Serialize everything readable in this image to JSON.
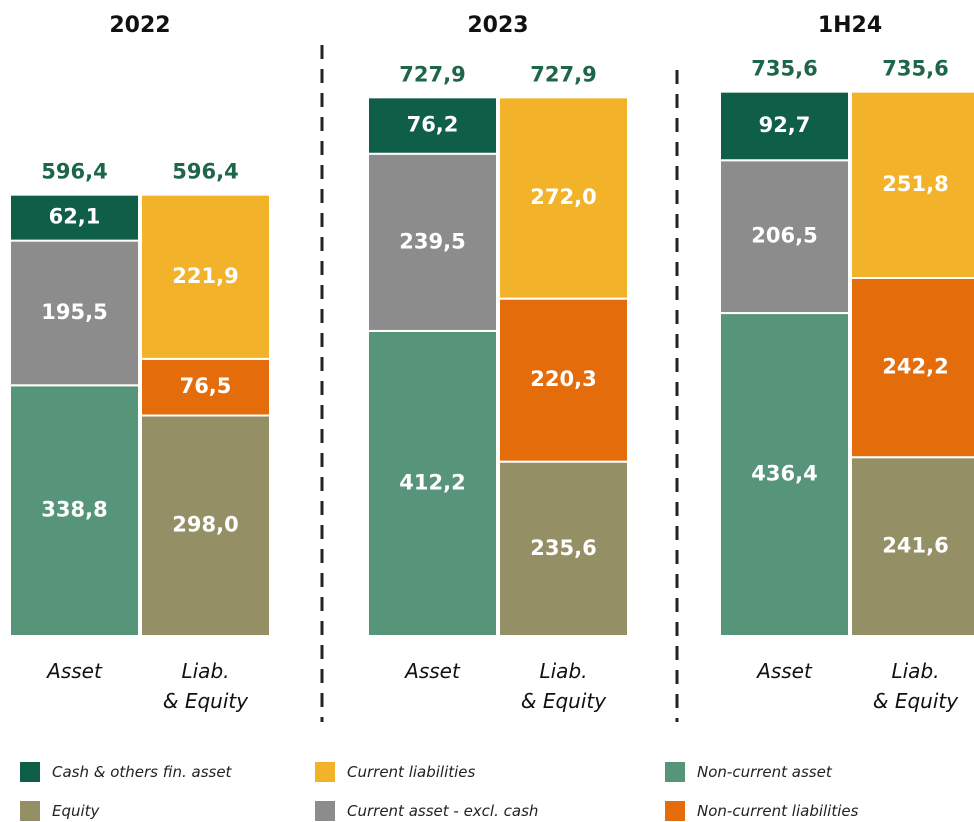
{
  "chart_data": {
    "type": "stacked_bar",
    "groups": [
      "2022",
      "2023",
      "1H24"
    ],
    "categories": [
      "Asset",
      "Liab.\n& Equity",
      "Asset",
      "Liab.\n& Equity",
      "Asset",
      "Liab.\n& Equity"
    ],
    "series": [
      {
        "name": "Non-current asset",
        "color": "#56957a",
        "values": [
          338.8,
          null,
          412.2,
          null,
          436.4,
          null
        ],
        "value_labels": [
          "338,8",
          null,
          "412,2",
          null,
          "436,4",
          null
        ]
      },
      {
        "name": "Current asset - excl. cash",
        "color": "#8c8c8c",
        "values": [
          195.5,
          null,
          239.5,
          null,
          206.5,
          null
        ],
        "value_labels": [
          "195,5",
          null,
          "239,5",
          null,
          "206,5",
          null
        ]
      },
      {
        "name": "Cash & others fin. asset",
        "color": "#0f5e47",
        "values": [
          62.1,
          null,
          76.2,
          null,
          92.7,
          null
        ],
        "value_labels": [
          "62,1",
          null,
          "76,2",
          null,
          "92,7",
          null
        ]
      },
      {
        "name": "Equity",
        "color": "#958f65",
        "values": [
          null,
          298.0,
          null,
          235.6,
          null,
          241.6
        ],
        "value_labels": [
          null,
          "298,0",
          null,
          "235,6",
          null,
          "241,6"
        ]
      },
      {
        "name": "Non-current liabilities",
        "color": "#e46c0a",
        "values": [
          null,
          76.5,
          null,
          220.3,
          null,
          242.2
        ],
        "value_labels": [
          null,
          "76,5",
          null,
          "220,3",
          null,
          "242,2"
        ]
      },
      {
        "name": "Current liabilities",
        "color": "#f2b229",
        "values": [
          null,
          221.9,
          null,
          272.0,
          null,
          251.8
        ],
        "value_labels": [
          null,
          "221,9",
          null,
          "272,0",
          null,
          "251,8"
        ]
      }
    ],
    "totals": [
      596.4,
      596.4,
      727.9,
      727.9,
      735.6,
      735.6
    ],
    "total_labels": [
      "596,4",
      "596,4",
      "727,9",
      "727,9",
      "735,6",
      "735,6"
    ]
  }
}
